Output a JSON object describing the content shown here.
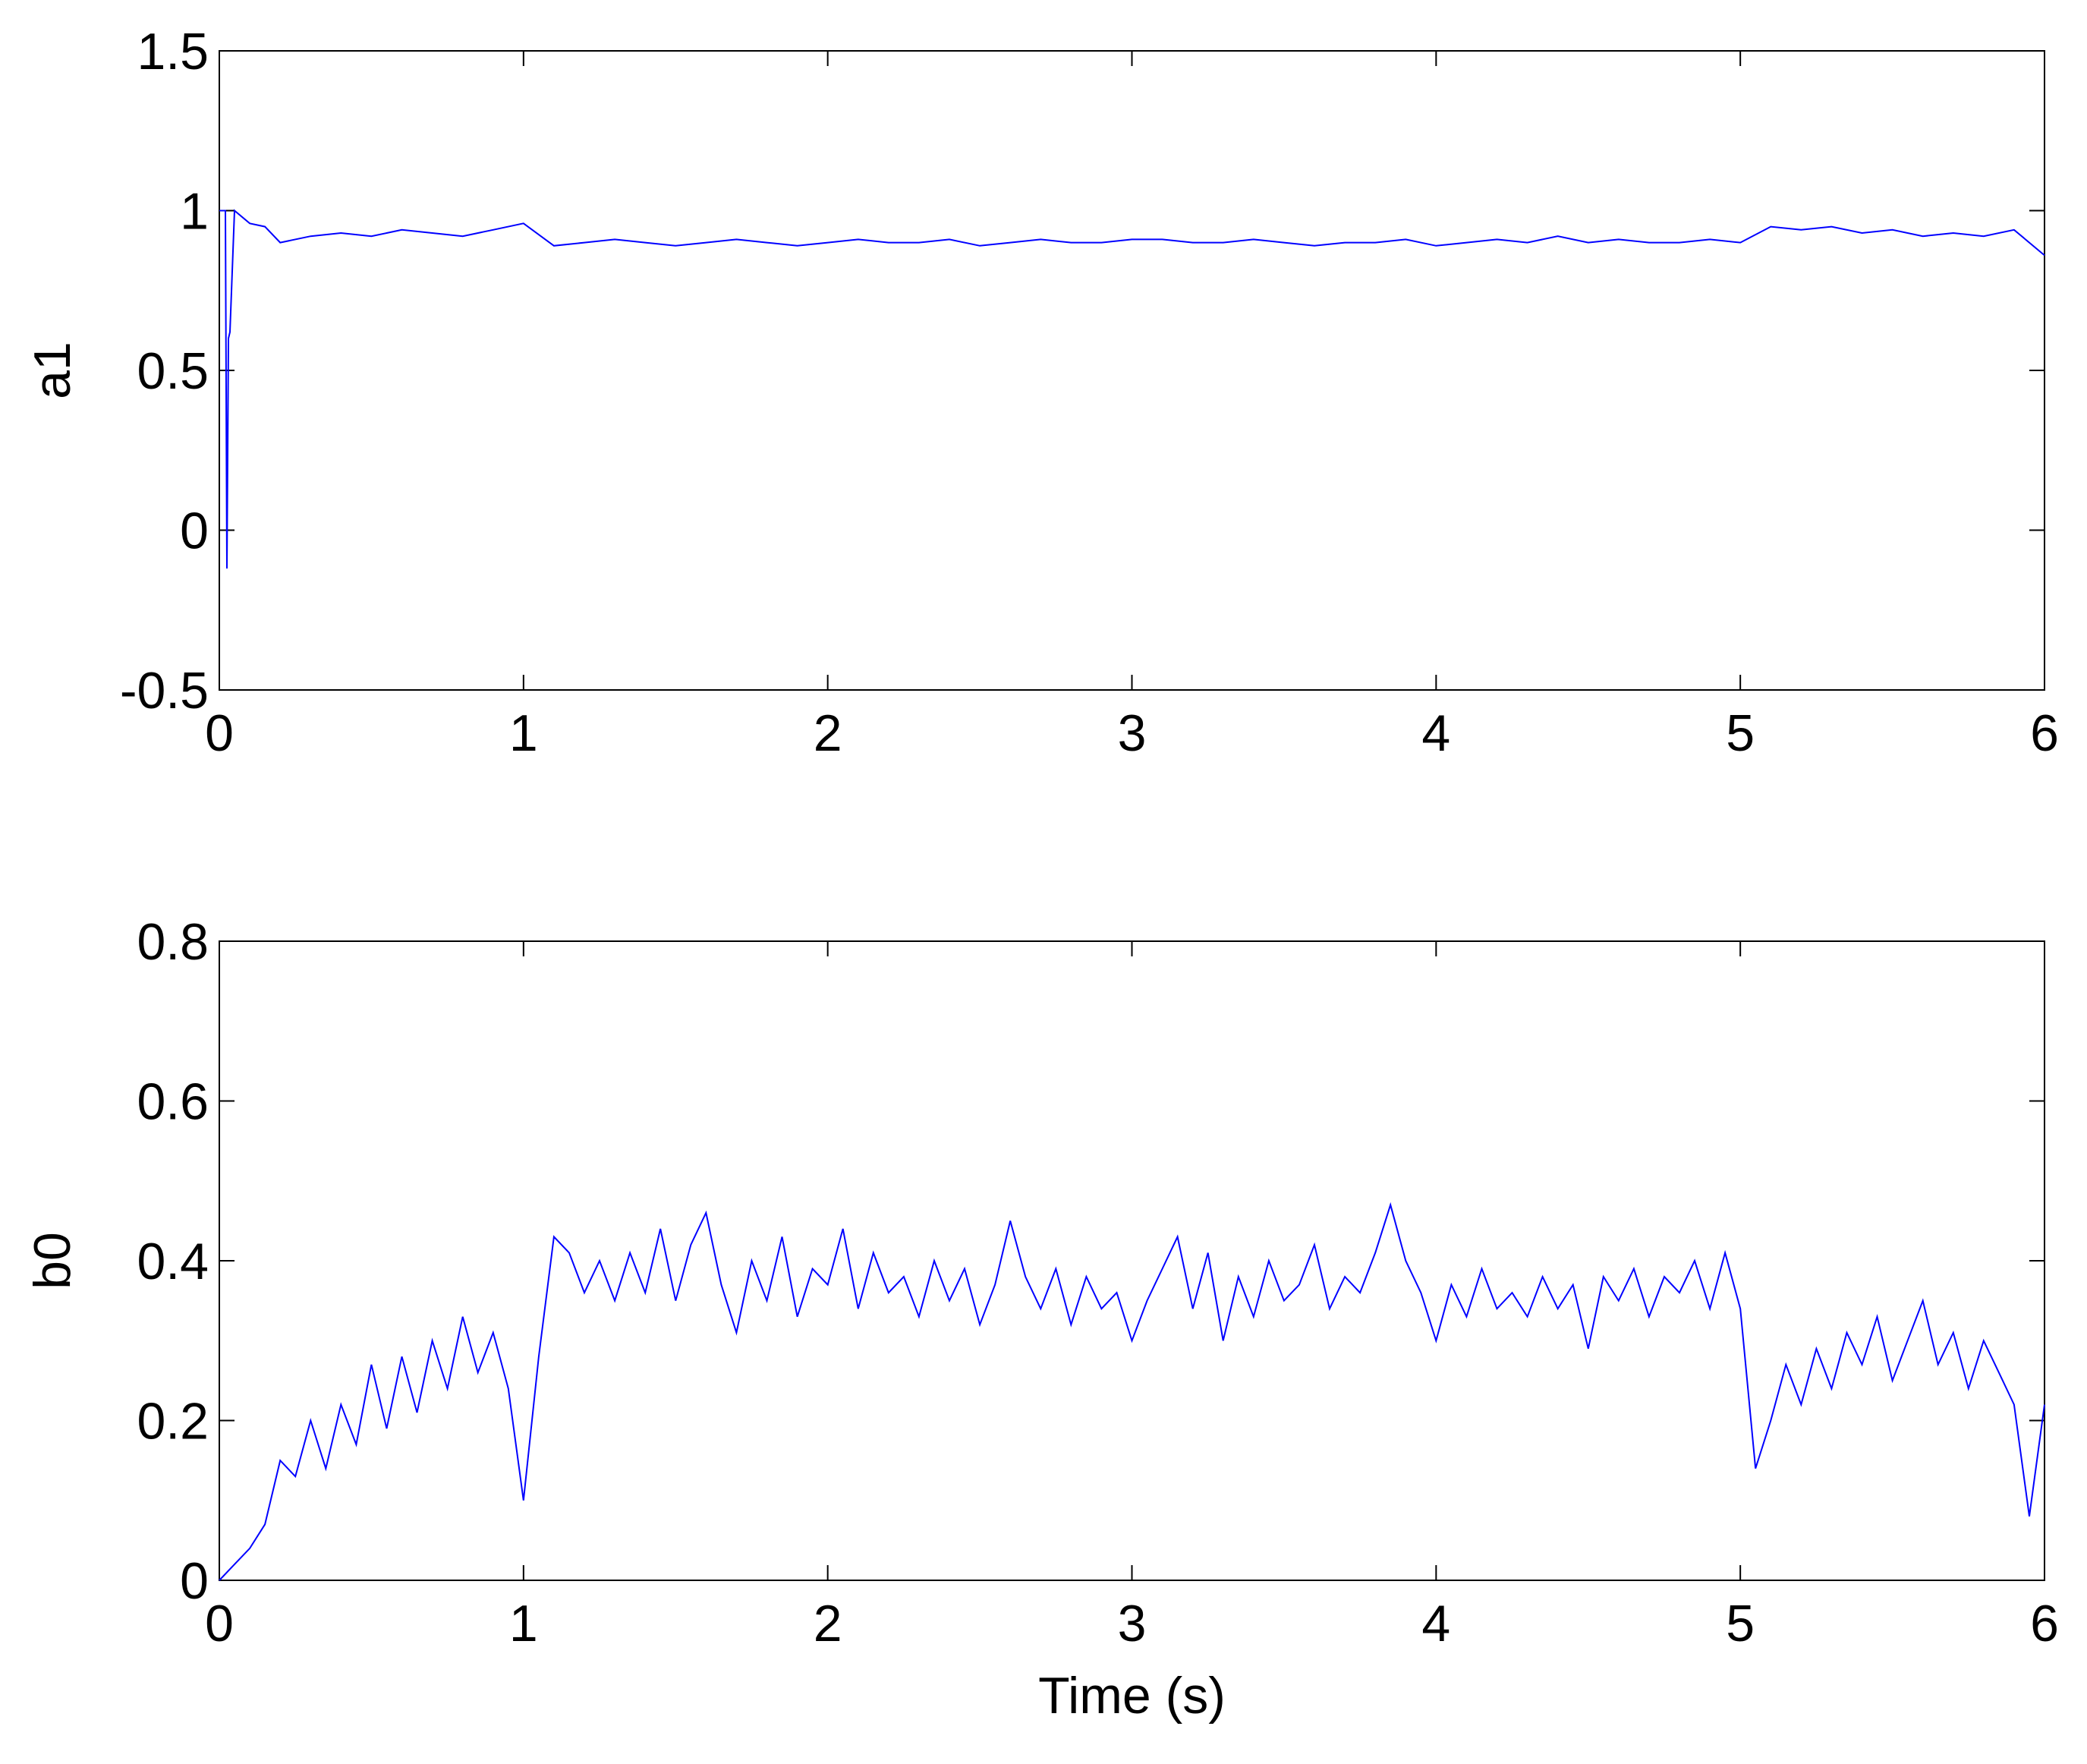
{
  "chart_data": [
    {
      "type": "line",
      "ylabel": "a1",
      "x": [
        0,
        0.02,
        0.025,
        0.03,
        0.035,
        0.05,
        0.1,
        0.15,
        0.2,
        0.3,
        0.4,
        0.5,
        0.6,
        0.7,
        0.8,
        0.9,
        1.0,
        1.1,
        1.2,
        1.3,
        1.4,
        1.5,
        1.6,
        1.7,
        1.8,
        1.9,
        2.0,
        2.1,
        2.2,
        2.3,
        2.4,
        2.5,
        2.6,
        2.7,
        2.8,
        2.9,
        3.0,
        3.1,
        3.2,
        3.3,
        3.4,
        3.5,
        3.6,
        3.7,
        3.8,
        3.9,
        4.0,
        4.1,
        4.2,
        4.3,
        4.4,
        4.5,
        4.6,
        4.7,
        4.8,
        4.9,
        5.0,
        5.1,
        5.2,
        5.3,
        5.4,
        5.5,
        5.6,
        5.7,
        5.8,
        5.9,
        6.0
      ],
      "series": [
        {
          "color": "#0000ff",
          "values": [
            1.0,
            1.0,
            -0.12,
            0.6,
            0.62,
            1.0,
            0.96,
            0.95,
            0.9,
            0.92,
            0.93,
            0.92,
            0.94,
            0.93,
            0.92,
            0.94,
            0.96,
            0.89,
            0.9,
            0.91,
            0.9,
            0.89,
            0.9,
            0.91,
            0.9,
            0.89,
            0.9,
            0.91,
            0.9,
            0.9,
            0.91,
            0.89,
            0.9,
            0.91,
            0.9,
            0.9,
            0.91,
            0.91,
            0.9,
            0.9,
            0.91,
            0.9,
            0.89,
            0.9,
            0.9,
            0.91,
            0.89,
            0.9,
            0.91,
            0.9,
            0.92,
            0.9,
            0.91,
            0.9,
            0.9,
            0.91,
            0.9,
            0.95,
            0.94,
            0.95,
            0.93,
            0.94,
            0.92,
            0.93,
            0.92,
            0.94,
            0.86
          ]
        }
      ],
      "xlim": [
        0,
        6
      ],
      "xticks": [
        0,
        1,
        2,
        3,
        4,
        5,
        6
      ],
      "ylim": [
        -0.5,
        1.5
      ],
      "yticks": [
        -0.5,
        0,
        0.5,
        1,
        1.5
      ]
    },
    {
      "type": "line",
      "ylabel": "b0",
      "xlabel": "Time (s)",
      "x": [
        0,
        0.05,
        0.1,
        0.15,
        0.2,
        0.25,
        0.3,
        0.35,
        0.4,
        0.45,
        0.5,
        0.55,
        0.6,
        0.65,
        0.7,
        0.75,
        0.8,
        0.85,
        0.9,
        0.95,
        1.0,
        1.05,
        1.1,
        1.15,
        1.2,
        1.25,
        1.3,
        1.35,
        1.4,
        1.45,
        1.5,
        1.55,
        1.6,
        1.65,
        1.7,
        1.75,
        1.8,
        1.85,
        1.9,
        1.95,
        2.0,
        2.05,
        2.1,
        2.15,
        2.2,
        2.25,
        2.3,
        2.35,
        2.4,
        2.45,
        2.5,
        2.55,
        2.6,
        2.65,
        2.7,
        2.75,
        2.8,
        2.85,
        2.9,
        2.95,
        3.0,
        3.05,
        3.1,
        3.15,
        3.2,
        3.25,
        3.3,
        3.35,
        3.4,
        3.45,
        3.5,
        3.55,
        3.6,
        3.65,
        3.7,
        3.75,
        3.8,
        3.85,
        3.9,
        3.95,
        4.0,
        4.05,
        4.1,
        4.15,
        4.2,
        4.25,
        4.3,
        4.35,
        4.4,
        4.45,
        4.5,
        4.55,
        4.6,
        4.65,
        4.7,
        4.75,
        4.8,
        4.85,
        4.9,
        4.95,
        5.0,
        5.05,
        5.1,
        5.15,
        5.2,
        5.25,
        5.3,
        5.35,
        5.4,
        5.45,
        5.5,
        5.55,
        5.6,
        5.65,
        5.7,
        5.75,
        5.8,
        5.85,
        5.9,
        5.95,
        6.0
      ],
      "series": [
        {
          "color": "#0000ff",
          "values": [
            0.0,
            0.02,
            0.04,
            0.07,
            0.15,
            0.13,
            0.2,
            0.14,
            0.22,
            0.17,
            0.27,
            0.19,
            0.28,
            0.21,
            0.3,
            0.24,
            0.33,
            0.26,
            0.31,
            0.24,
            0.1,
            0.28,
            0.43,
            0.41,
            0.36,
            0.4,
            0.35,
            0.41,
            0.36,
            0.44,
            0.35,
            0.42,
            0.46,
            0.37,
            0.31,
            0.4,
            0.35,
            0.43,
            0.33,
            0.39,
            0.37,
            0.44,
            0.34,
            0.41,
            0.36,
            0.38,
            0.33,
            0.4,
            0.35,
            0.39,
            0.32,
            0.37,
            0.45,
            0.38,
            0.34,
            0.39,
            0.32,
            0.38,
            0.34,
            0.36,
            0.3,
            0.35,
            0.39,
            0.43,
            0.34,
            0.41,
            0.3,
            0.38,
            0.33,
            0.4,
            0.35,
            0.37,
            0.42,
            0.34,
            0.38,
            0.36,
            0.41,
            0.47,
            0.4,
            0.36,
            0.3,
            0.37,
            0.33,
            0.39,
            0.34,
            0.36,
            0.33,
            0.38,
            0.34,
            0.37,
            0.29,
            0.38,
            0.35,
            0.39,
            0.33,
            0.38,
            0.36,
            0.4,
            0.34,
            0.41,
            0.34,
            0.14,
            0.2,
            0.27,
            0.22,
            0.29,
            0.24,
            0.31,
            0.27,
            0.33,
            0.25,
            0.3,
            0.35,
            0.27,
            0.31,
            0.24,
            0.3,
            0.26,
            0.22,
            0.08,
            0.22
          ]
        }
      ],
      "xlim": [
        0,
        6
      ],
      "xticks": [
        0,
        1,
        2,
        3,
        4,
        5,
        6
      ],
      "ylim": [
        0,
        0.8
      ],
      "yticks": [
        0,
        0.2,
        0.4,
        0.6,
        0.8
      ]
    }
  ]
}
